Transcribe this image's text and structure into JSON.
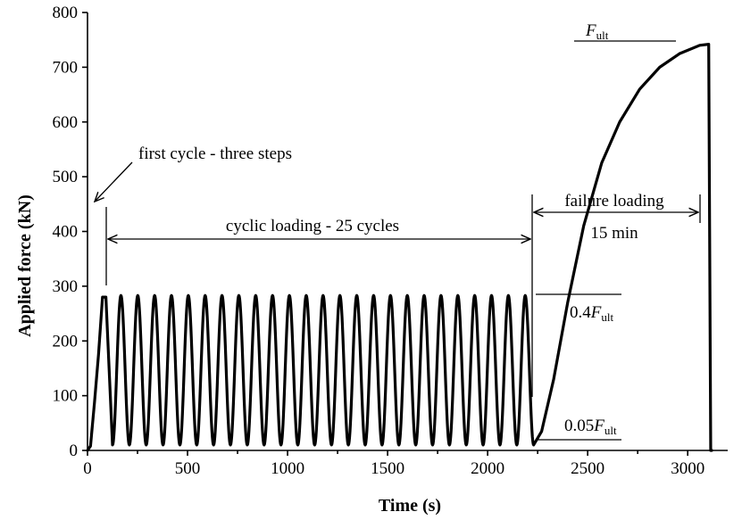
{
  "chart_data": {
    "type": "line",
    "xlabel": "Time (s)",
    "ylabel": "Applied force (kN)",
    "xlim": [
      0,
      3200
    ],
    "ylim": [
      0,
      800
    ],
    "x_ticks": [
      "0",
      "500",
      "1000",
      "1500",
      "2000",
      "2500",
      "3000"
    ],
    "y_ticks": [
      "0",
      "100",
      "200",
      "300",
      "400",
      "500",
      "600",
      "700",
      "800"
    ],
    "grid": false,
    "legend": "none",
    "line_color": "#000000",
    "series": [
      {
        "first_cycle": {
          "steps_t": [
            0,
            15,
            35,
            55,
            75,
            92,
            125
          ],
          "steps_F": [
            0,
            8,
            88,
            175,
            280,
            280,
            10
          ]
        },
        "cycles": {
          "count": 25,
          "start_time": 125,
          "end_time": 2230,
          "F_min": 10,
          "F_max": 283
        },
        "failure": {
          "t": [
            2230,
            2270,
            2330,
            2400,
            2480,
            2570,
            2660,
            2760,
            2860,
            2960,
            3060,
            3105,
            3115,
            3120
          ],
          "F": [
            10,
            35,
            130,
            270,
            410,
            525,
            600,
            660,
            700,
            725,
            740,
            742,
            0,
            0
          ]
        }
      }
    ],
    "annotations": {
      "first_cycle": "first cycle - three steps",
      "cyclic": "cyclic loading - 25 cycles",
      "failure": "failure loading",
      "failure_duration": "15 min",
      "f_ult": "F",
      "f_ult_sub": "ult",
      "f_04_prefix": "0.4",
      "f_04_var": "F",
      "f_04_sub": "ult",
      "f_005_prefix": "0.05",
      "f_005_var": "F",
      "f_005_sub": "ult"
    }
  }
}
